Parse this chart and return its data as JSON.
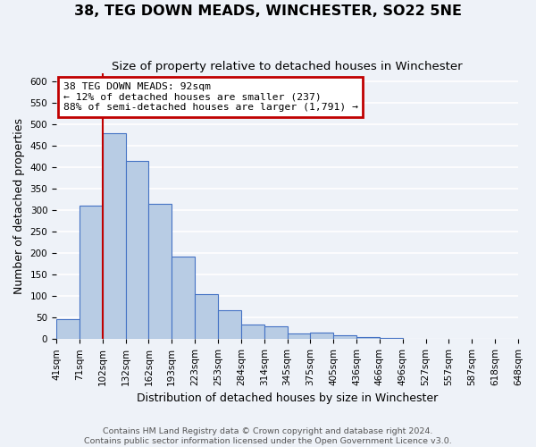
{
  "title": "38, TEG DOWN MEADS, WINCHESTER, SO22 5NE",
  "subtitle": "Size of property relative to detached houses in Winchester",
  "xlabel": "Distribution of detached houses by size in Winchester",
  "ylabel": "Number of detached properties",
  "bins": [
    "41sqm",
    "71sqm",
    "102sqm",
    "132sqm",
    "162sqm",
    "193sqm",
    "223sqm",
    "253sqm",
    "284sqm",
    "314sqm",
    "345sqm",
    "375sqm",
    "405sqm",
    "436sqm",
    "466sqm",
    "496sqm",
    "527sqm",
    "557sqm",
    "587sqm",
    "618sqm",
    "648sqm"
  ],
  "values": [
    47,
    310,
    480,
    415,
    315,
    192,
    105,
    68,
    35,
    30,
    14,
    15,
    8,
    5,
    2,
    1,
    1,
    0,
    0,
    1
  ],
  "bar_color": "#b8cce4",
  "bar_edge_color": "#4472c4",
  "vline_color": "#c00000",
  "annotation_line1": "38 TEG DOWN MEADS: 92sqm",
  "annotation_line2": "← 12% of detached houses are smaller (237)",
  "annotation_line3": "88% of semi-detached houses are larger (1,791) →",
  "annotation_box_edge_color": "#c00000",
  "ylim": [
    0,
    620
  ],
  "yticks": [
    0,
    50,
    100,
    150,
    200,
    250,
    300,
    350,
    400,
    450,
    500,
    550,
    600
  ],
  "footer_line1": "Contains HM Land Registry data © Crown copyright and database right 2024.",
  "footer_line2": "Contains public sector information licensed under the Open Government Licence v3.0.",
  "bg_color": "#eef2f8",
  "grid_color": "#ffffff",
  "title_fontsize": 11.5,
  "subtitle_fontsize": 9.5,
  "tick_fontsize": 7.5,
  "axis_label_fontsize": 9,
  "footer_fontsize": 6.8
}
